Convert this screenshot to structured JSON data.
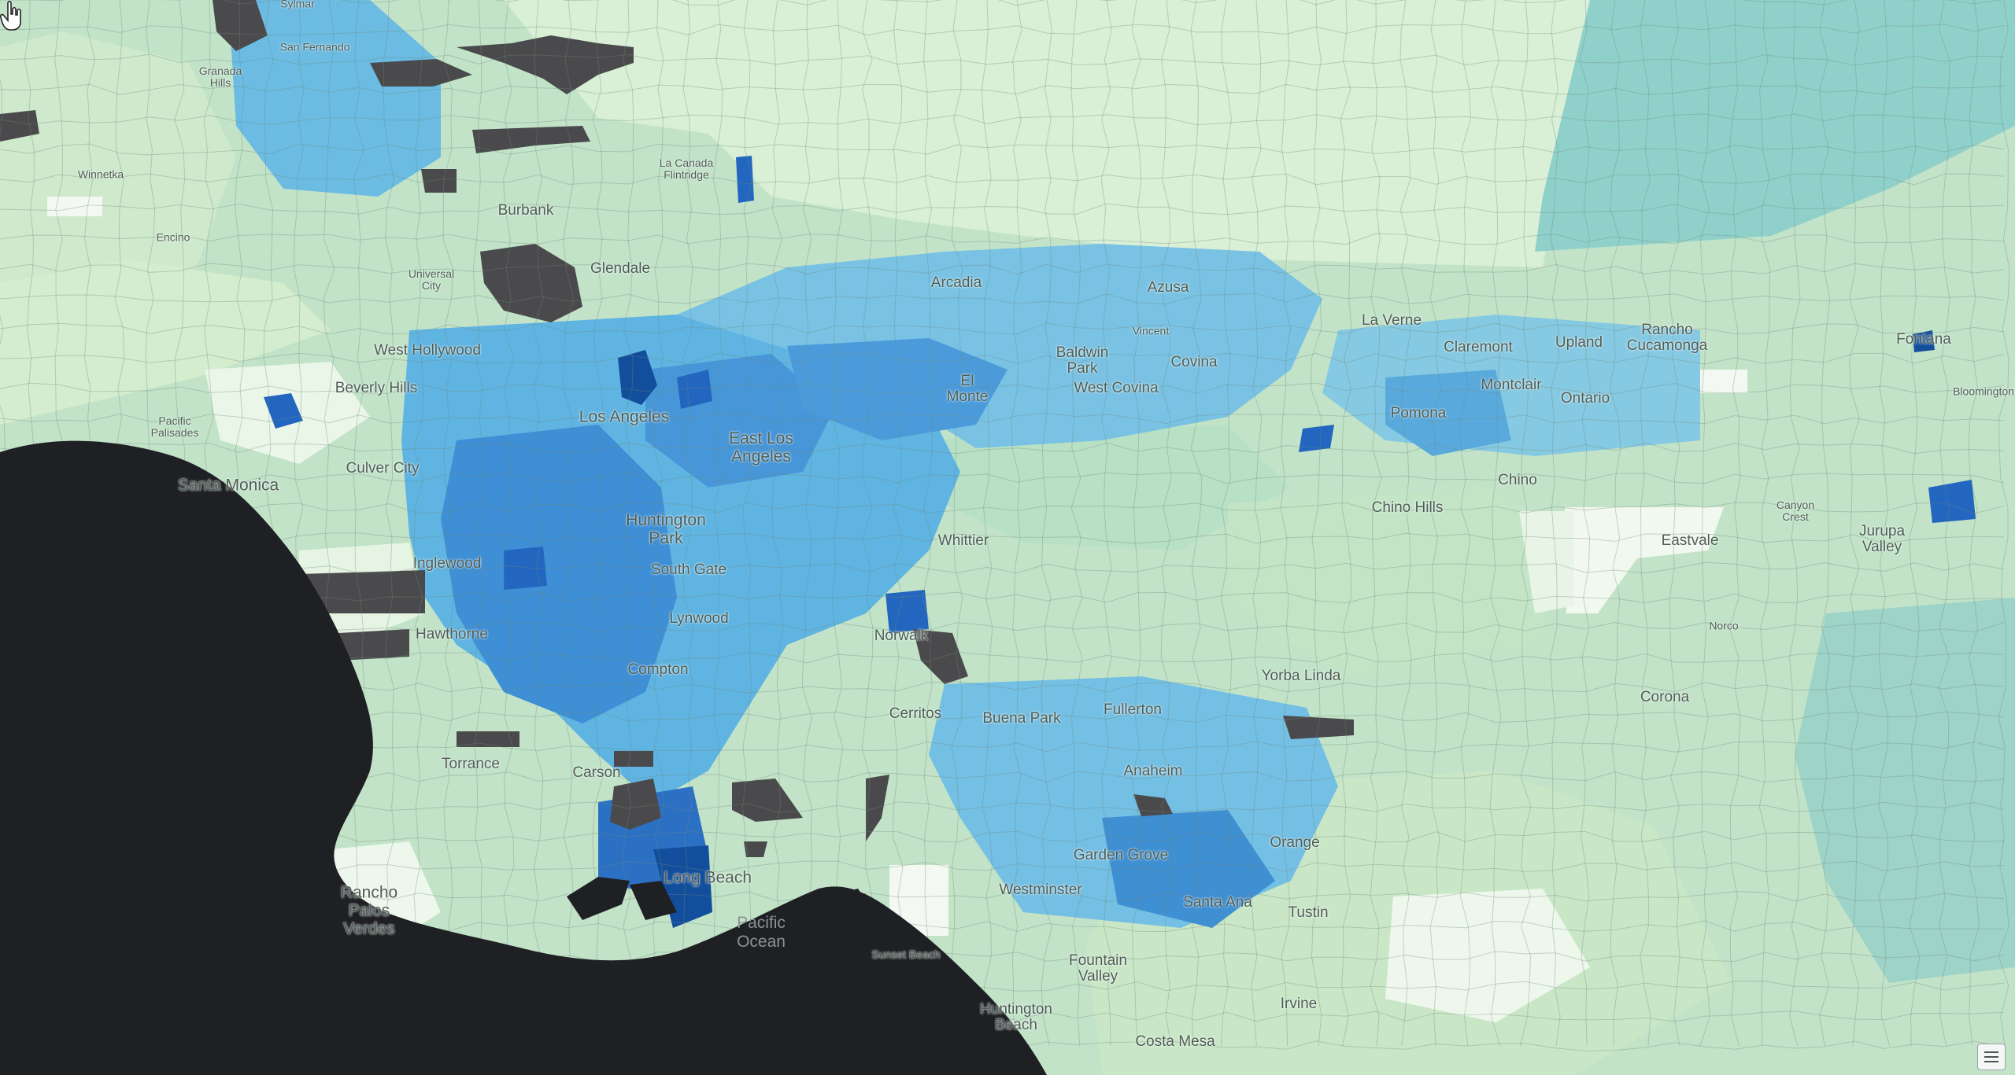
{
  "map": {
    "kind": "choropleth",
    "region": "Los Angeles metro area",
    "colors": {
      "ocean": "#1f2024",
      "no_data": "#4a4a4c",
      "ramp": [
        "#f3f9f2",
        "#dcf0d9",
        "#c2e3c8",
        "#a8d8cf",
        "#7ec5e3",
        "#56afe0",
        "#3d8fd6",
        "#2366bf",
        "#124e9c"
      ]
    }
  },
  "labels": [
    {
      "name": "sylmar-label",
      "text": "Sylmar"
    },
    {
      "name": "san-fernando-label",
      "text": "San Fernando"
    },
    {
      "name": "granada-hills-label",
      "text": "Granada\nHills"
    },
    {
      "name": "winnetka-label",
      "text": "Winnetka"
    },
    {
      "name": "encino-label",
      "text": "Encino"
    },
    {
      "name": "la-canada-flintridge-label",
      "text": "La Canada\nFlintridge"
    },
    {
      "name": "burbank-label",
      "text": "Burbank"
    },
    {
      "name": "universal-city-label",
      "text": "Universal\nCity"
    },
    {
      "name": "glendale-label",
      "text": "Glendale"
    },
    {
      "name": "arcadia-label",
      "text": "Arcadia"
    },
    {
      "name": "azusa-label",
      "text": "Azusa"
    },
    {
      "name": "la-verne-label",
      "text": "La Verne"
    },
    {
      "name": "claremont-label",
      "text": "Claremont"
    },
    {
      "name": "upland-label",
      "text": "Upland"
    },
    {
      "name": "rancho-cucamonga-label",
      "text": "Rancho\nCucamonga"
    },
    {
      "name": "fontana-label",
      "text": "Fontana"
    },
    {
      "name": "bloomington-label",
      "text": "Bloomington"
    },
    {
      "name": "west-hollywood-label",
      "text": "West Hollywood"
    },
    {
      "name": "beverly-hills-label",
      "text": "Beverly Hills"
    },
    {
      "name": "pacific-palisades-label",
      "text": "Pacific\nPalisades"
    },
    {
      "name": "baldwin-park-label",
      "text": "Baldwin\nPark"
    },
    {
      "name": "vincent-label",
      "text": "Vincent"
    },
    {
      "name": "covina-label",
      "text": "Covina"
    },
    {
      "name": "west-covina-label",
      "text": "West Covina"
    },
    {
      "name": "el-monte-label",
      "text": "El\nMonte"
    },
    {
      "name": "montclair-label",
      "text": "Montclair"
    },
    {
      "name": "ontario-label",
      "text": "Ontario"
    },
    {
      "name": "pomona-label",
      "text": "Pomona"
    },
    {
      "name": "los-angeles-label",
      "text": "Los Angeles"
    },
    {
      "name": "east-los-angeles-label",
      "text": "East Los\nAngeles"
    },
    {
      "name": "culver-city-label",
      "text": "Culver City"
    },
    {
      "name": "santa-monica-label",
      "text": "Santa Monica"
    },
    {
      "name": "chino-label",
      "text": "Chino"
    },
    {
      "name": "chino-hills-label",
      "text": "Chino Hills"
    },
    {
      "name": "canyon-crest-label",
      "text": "Canyon\nCrest"
    },
    {
      "name": "jurupa-valley-label",
      "text": "Jurupa\nValley"
    },
    {
      "name": "huntington-park-label",
      "text": "Huntington\nPark"
    },
    {
      "name": "whittier-label",
      "text": "Whittier"
    },
    {
      "name": "eastvale-label",
      "text": "Eastvale"
    },
    {
      "name": "inglewood-label",
      "text": "Inglewood"
    },
    {
      "name": "south-gate-label",
      "text": "South Gate"
    },
    {
      "name": "lynwood-label",
      "text": "Lynwood"
    },
    {
      "name": "hawthorne-label",
      "text": "Hawthorne"
    },
    {
      "name": "norwalk-label",
      "text": "Norwalk"
    },
    {
      "name": "norco-label",
      "text": "Norco"
    },
    {
      "name": "compton-label",
      "text": "Compton"
    },
    {
      "name": "yorba-linda-label",
      "text": "Yorba Linda"
    },
    {
      "name": "corona-label",
      "text": "Corona"
    },
    {
      "name": "cerritos-label",
      "text": "Cerritos"
    },
    {
      "name": "buena-park-label",
      "text": "Buena Park"
    },
    {
      "name": "fullerton-label",
      "text": "Fullerton"
    },
    {
      "name": "torrance-label",
      "text": "Torrance"
    },
    {
      "name": "carson-label",
      "text": "Carson"
    },
    {
      "name": "anaheim-label",
      "text": "Anaheim"
    },
    {
      "name": "orange-label",
      "text": "Orange"
    },
    {
      "name": "garden-grove-label",
      "text": "Garden Grove"
    },
    {
      "name": "long-beach-label",
      "text": "Long Beach"
    },
    {
      "name": "rancho-palos-verdes-label",
      "text": "Rancho\nPalos\nVerdes"
    },
    {
      "name": "pacific-ocean-label",
      "text": "Pacific\nOcean"
    },
    {
      "name": "westminster-label",
      "text": "Westminster"
    },
    {
      "name": "santa-ana-label",
      "text": "Santa Ana"
    },
    {
      "name": "tustin-label",
      "text": "Tustin"
    },
    {
      "name": "sunset-beach-label",
      "text": "Sunset Beach"
    },
    {
      "name": "fountain-valley-label",
      "text": "Fountain\nValley"
    },
    {
      "name": "irvine-label",
      "text": "Irvine"
    },
    {
      "name": "huntington-beach-label",
      "text": "Huntington\nBeach"
    },
    {
      "name": "costa-mesa-label",
      "text": "Costa Mesa"
    }
  ]
}
